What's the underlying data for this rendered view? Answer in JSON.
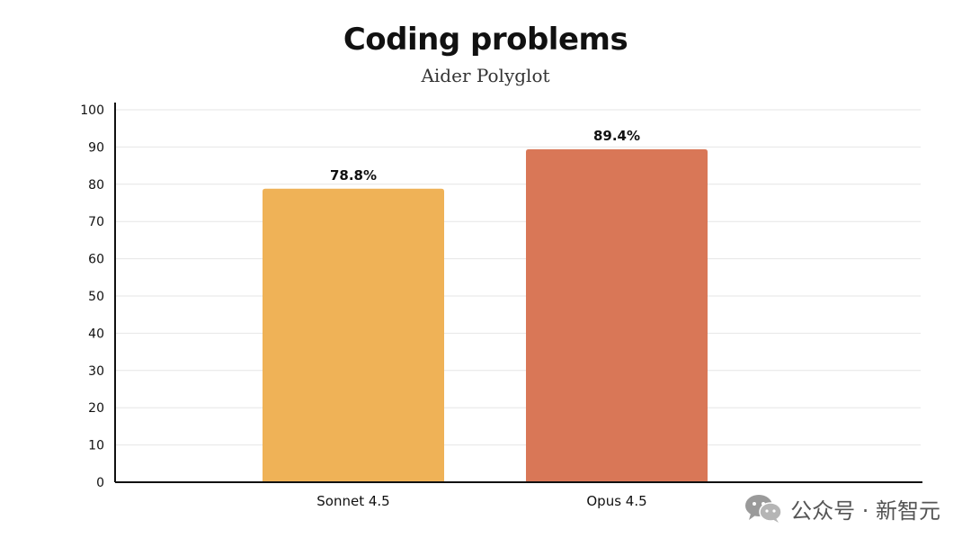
{
  "chart_data": {
    "type": "bar",
    "title": "Coding problems",
    "subtitle": "Aider Polyglot",
    "categories": [
      "Sonnet 4.5",
      "Opus 4.5"
    ],
    "values": [
      78.8,
      89.4
    ],
    "data_labels": [
      "78.8%",
      "89.4%"
    ],
    "colors": [
      "#EFB257",
      "#D97757"
    ],
    "ylim": [
      0,
      100
    ],
    "yticks": [
      0,
      10,
      20,
      30,
      40,
      50,
      60,
      70,
      80,
      90,
      100
    ],
    "xlabel": "",
    "ylabel": "",
    "grid": true,
    "legend": "none"
  },
  "watermark": {
    "icon": "wechat-icon",
    "text": "公众号 · 新智元"
  }
}
